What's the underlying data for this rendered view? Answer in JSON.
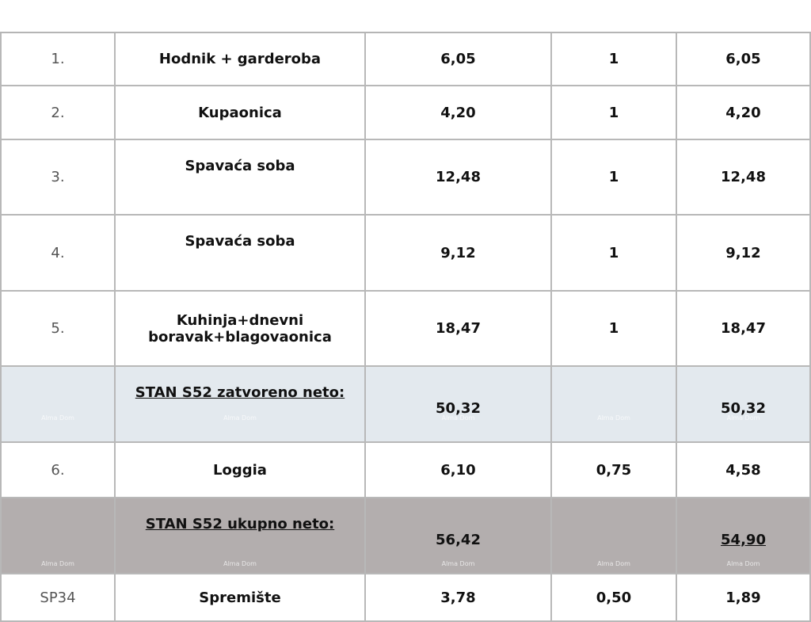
{
  "watermark": "Alma Dom",
  "rows": [
    {
      "no": "1.",
      "name": "Hodnik + garderoba",
      "area": "6,05",
      "coef": "1",
      "total": "6,05"
    },
    {
      "no": "2.",
      "name": "Kupaonica",
      "area": "4,20",
      "coef": "1",
      "total": "4,20"
    },
    {
      "no": "3.",
      "name": "Spavaća soba",
      "area": "12,48",
      "coef": "1",
      "total": "12,48"
    },
    {
      "no": "4.",
      "name": "Spavaća soba",
      "area": "9,12",
      "coef": "1",
      "total": "9,12"
    },
    {
      "no": "5.",
      "name": "Kuhinja+dnevni boravak+blagovaonica",
      "area": "18,47",
      "coef": "1",
      "total": "18,47"
    },
    {
      "no": "",
      "name": "STAN S52 zatvoreno neto:",
      "area": "50,32",
      "coef": "",
      "total": "50,32"
    },
    {
      "no": "6.",
      "name": "Loggia",
      "area": "6,10",
      "coef": "0,75",
      "total": "4,58"
    },
    {
      "no": "",
      "name": "STAN S52 ukupno neto:",
      "area": "56,42",
      "coef": "",
      "total": "54,90"
    },
    {
      "no": "SP34",
      "name": "Spremište",
      "area": "3,78",
      "coef": "0,50",
      "total": "1,89"
    }
  ],
  "colors": {
    "subtotal_bg": "#e3e9ee",
    "total_bg": "#b3aeae",
    "border": "#b8b8b8"
  }
}
